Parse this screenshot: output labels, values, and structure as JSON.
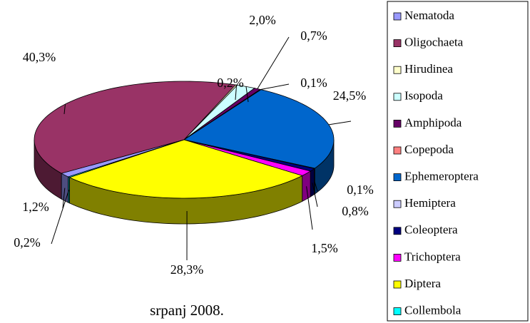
{
  "chart_data": {
    "type": "pie",
    "title": "srpanj 2008.",
    "categories": [
      "Nematoda",
      "Oligochaeta",
      "Hirudinea",
      "Isopoda",
      "Amphipoda",
      "Copepoda",
      "Ephemeroptera",
      "Hemiptera",
      "Coleoptera",
      "Trichoptera",
      "Diptera",
      "Collembola"
    ],
    "values": [
      1.2,
      40.3,
      0.2,
      2.0,
      0.7,
      0.1,
      24.5,
      0.1,
      0.8,
      1.5,
      28.3,
      0.2
    ],
    "value_labels": [
      "1,2%",
      "40,3%",
      "0,2%",
      "2,0%",
      "0,7%",
      "0,1%",
      "24,5%",
      "0,1%",
      "0,8%",
      "1,5%",
      "28,3%",
      "0,2%"
    ],
    "colors": [
      "#9999ff",
      "#993366",
      "#ffffcc",
      "#ccffff",
      "#660066",
      "#ff8080",
      "#0066cc",
      "#ccccff",
      "#000080",
      "#ff00ff",
      "#ffff00",
      "#00ffff"
    ],
    "legend": "right"
  }
}
